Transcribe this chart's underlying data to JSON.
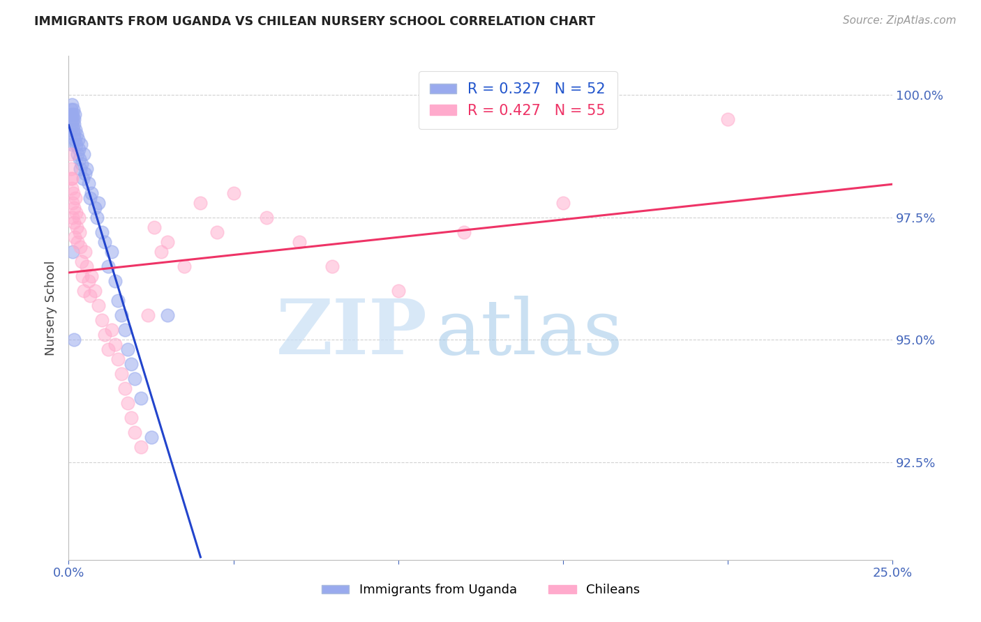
{
  "title": "IMMIGRANTS FROM UGANDA VS CHILEAN NURSERY SCHOOL CORRELATION CHART",
  "source": "Source: ZipAtlas.com",
  "ylabel": "Nursery School",
  "xlim": [
    0.0,
    25.0
  ],
  "ylim": [
    90.5,
    100.8
  ],
  "y_tick_pos": [
    92.5,
    95.0,
    97.5,
    100.0
  ],
  "y_tick_labels": [
    "92.5%",
    "95.0%",
    "97.5%",
    "100.0%"
  ],
  "x_tick_pos": [
    0.0,
    5.0,
    10.0,
    15.0,
    20.0,
    25.0
  ],
  "x_tick_labels": [
    "0.0%",
    "",
    "",
    "",
    "",
    "25.0%"
  ],
  "legend_line1": "R = 0.327   N = 52",
  "legend_line2": "R = 0.427   N = 55",
  "legend_label1": "Immigrants from Uganda",
  "legend_label2": "Chileans",
  "blue_marker_color": "#99aaee",
  "pink_marker_color": "#ffaacc",
  "blue_line_color": "#2244cc",
  "pink_line_color": "#ee3366",
  "blue_text_color": "#2255cc",
  "pink_text_color": "#ee3366",
  "ytick_color": "#4466bb",
  "xtick_color": "#4466bb",
  "grid_color": "#cccccc",
  "title_color": "#222222",
  "source_color": "#999999",
  "ylabel_color": "#444444",
  "watermark_zip_color": "#c8dff5",
  "watermark_atlas_color": "#a0c8e8",
  "uganda_x": [
    0.05,
    0.07,
    0.08,
    0.09,
    0.1,
    0.11,
    0.12,
    0.13,
    0.14,
    0.15,
    0.16,
    0.17,
    0.18,
    0.19,
    0.2,
    0.22,
    0.24,
    0.26,
    0.28,
    0.3,
    0.32,
    0.35,
    0.38,
    0.4,
    0.43,
    0.45,
    0.5,
    0.55,
    0.6,
    0.65,
    0.7,
    0.8,
    0.85,
    0.9,
    1.0,
    1.1,
    1.2,
    1.3,
    1.4,
    1.5,
    1.6,
    1.7,
    1.8,
    1.9,
    2.0,
    2.2,
    2.5,
    3.0,
    0.06,
    0.09,
    0.11,
    0.15
  ],
  "uganda_y": [
    99.5,
    99.7,
    99.6,
    99.8,
    99.4,
    99.6,
    99.5,
    99.3,
    99.7,
    99.5,
    99.2,
    99.4,
    99.1,
    99.6,
    99.3,
    99.0,
    99.2,
    98.8,
    99.1,
    98.9,
    98.7,
    98.5,
    99.0,
    98.6,
    98.3,
    98.8,
    98.4,
    98.5,
    98.2,
    97.9,
    98.0,
    97.7,
    97.5,
    97.8,
    97.2,
    97.0,
    96.5,
    96.8,
    96.2,
    95.8,
    95.5,
    95.2,
    94.8,
    94.5,
    94.2,
    93.8,
    93.0,
    95.5,
    99.3,
    99.0,
    96.8,
    95.0
  ],
  "chilean_x": [
    0.05,
    0.07,
    0.08,
    0.1,
    0.11,
    0.12,
    0.14,
    0.15,
    0.17,
    0.19,
    0.21,
    0.23,
    0.25,
    0.27,
    0.3,
    0.33,
    0.36,
    0.39,
    0.42,
    0.45,
    0.5,
    0.55,
    0.6,
    0.65,
    0.7,
    0.8,
    0.9,
    1.0,
    1.1,
    1.2,
    1.3,
    1.4,
    1.5,
    1.6,
    1.7,
    1.8,
    1.9,
    2.0,
    2.2,
    2.4,
    2.6,
    2.8,
    3.0,
    3.5,
    4.0,
    4.5,
    5.0,
    6.0,
    7.0,
    8.0,
    10.0,
    12.0,
    15.0,
    20.0,
    0.09
  ],
  "chilean_y": [
    98.8,
    98.5,
    98.3,
    98.1,
    97.8,
    97.5,
    98.0,
    97.7,
    97.4,
    97.1,
    97.9,
    97.6,
    97.3,
    97.0,
    97.5,
    97.2,
    96.9,
    96.6,
    96.3,
    96.0,
    96.8,
    96.5,
    96.2,
    95.9,
    96.3,
    96.0,
    95.7,
    95.4,
    95.1,
    94.8,
    95.2,
    94.9,
    94.6,
    94.3,
    94.0,
    93.7,
    93.4,
    93.1,
    92.8,
    95.5,
    97.3,
    96.8,
    97.0,
    96.5,
    97.8,
    97.2,
    98.0,
    97.5,
    97.0,
    96.5,
    96.0,
    97.2,
    97.8,
    99.5,
    98.3
  ]
}
